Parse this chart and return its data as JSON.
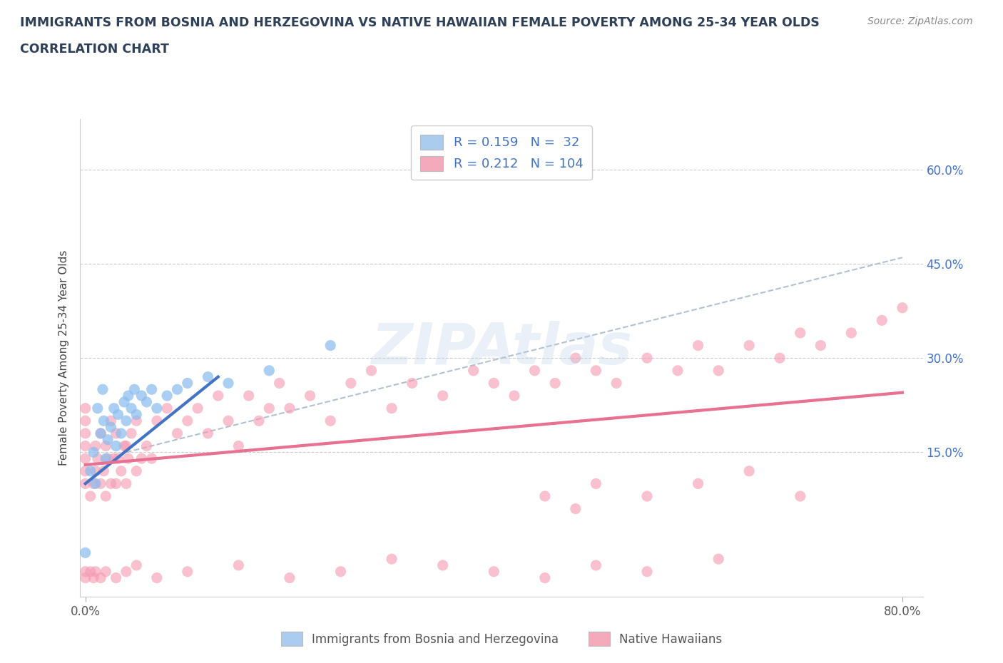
{
  "title_line1": "IMMIGRANTS FROM BOSNIA AND HERZEGOVINA VS NATIVE HAWAIIAN FEMALE POVERTY AMONG 25-34 YEAR OLDS",
  "title_line2": "CORRELATION CHART",
  "source_text": "Source: ZipAtlas.com",
  "ylabel": "Female Poverty Among 25-34 Year Olds",
  "xlim": [
    -0.005,
    0.82
  ],
  "ylim": [
    -0.08,
    0.68
  ],
  "xtick_positions": [
    0.0,
    0.8
  ],
  "xticklabels": [
    "0.0%",
    "80.0%"
  ],
  "ytick_positions": [
    0.0,
    0.15,
    0.3,
    0.45,
    0.6
  ],
  "right_ytick_positions": [
    0.15,
    0.3,
    0.45,
    0.6
  ],
  "right_yticklabels": [
    "15.0%",
    "30.0%",
    "45.0%",
    "60.0%"
  ],
  "bosnia_scatter_color": "#88bbee",
  "hawaii_scatter_color": "#f599b0",
  "bosnia_line_color": "#4472c4",
  "hawaii_line_color": "#e87090",
  "dashed_line_color": "#aabbcc",
  "hline_color": "#cccccc",
  "R_bosnia": 0.159,
  "N_bosnia": 32,
  "R_hawaii": 0.212,
  "N_hawaii": 104,
  "legend_label_1": "Immigrants from Bosnia and Herzegovina",
  "legend_label_2": "Native Hawaiians",
  "watermark": "ZIPAtlas",
  "legend_N_color": "#4472c4",
  "bosnia_legend_color": "#aaccee",
  "hawaii_legend_color": "#f5aabb",
  "bosnia_x": [
    0.0,
    0.005,
    0.008,
    0.01,
    0.012,
    0.015,
    0.017,
    0.018,
    0.02,
    0.022,
    0.025,
    0.028,
    0.03,
    0.032,
    0.035,
    0.038,
    0.04,
    0.042,
    0.045,
    0.048,
    0.05,
    0.055,
    0.06,
    0.065,
    0.07,
    0.08,
    0.09,
    0.1,
    0.12,
    0.14,
    0.18,
    0.24
  ],
  "bosnia_y": [
    -0.01,
    0.12,
    0.15,
    0.1,
    0.22,
    0.18,
    0.25,
    0.2,
    0.14,
    0.17,
    0.19,
    0.22,
    0.16,
    0.21,
    0.18,
    0.23,
    0.2,
    0.24,
    0.22,
    0.25,
    0.21,
    0.24,
    0.23,
    0.25,
    0.22,
    0.24,
    0.25,
    0.26,
    0.27,
    0.26,
    0.28,
    0.32
  ],
  "hawaii_x": [
    0.0,
    0.0,
    0.0,
    0.0,
    0.0,
    0.0,
    0.0,
    0.005,
    0.008,
    0.01,
    0.01,
    0.012,
    0.015,
    0.015,
    0.018,
    0.02,
    0.02,
    0.022,
    0.025,
    0.025,
    0.028,
    0.03,
    0.03,
    0.032,
    0.035,
    0.038,
    0.04,
    0.04,
    0.042,
    0.045,
    0.05,
    0.05,
    0.055,
    0.06,
    0.065,
    0.07,
    0.08,
    0.09,
    0.1,
    0.11,
    0.12,
    0.13,
    0.14,
    0.15,
    0.16,
    0.17,
    0.18,
    0.19,
    0.2,
    0.22,
    0.24,
    0.26,
    0.28,
    0.3,
    0.32,
    0.35,
    0.38,
    0.4,
    0.42,
    0.44,
    0.46,
    0.48,
    0.5,
    0.52,
    0.55,
    0.58,
    0.6,
    0.62,
    0.65,
    0.68,
    0.7,
    0.72,
    0.75,
    0.78,
    0.8,
    0.45,
    0.48,
    0.5,
    0.55,
    0.6,
    0.65,
    0.7,
    0.62,
    0.55,
    0.5,
    0.45,
    0.4,
    0.35,
    0.3,
    0.25,
    0.2,
    0.15,
    0.1,
    0.07,
    0.05,
    0.04,
    0.03,
    0.02,
    0.015,
    0.01,
    0.008,
    0.005,
    0.0,
    0.0
  ],
  "hawaii_y": [
    0.1,
    0.12,
    0.14,
    0.16,
    0.18,
    0.2,
    0.22,
    0.08,
    0.1,
    0.12,
    0.16,
    0.14,
    0.1,
    0.18,
    0.12,
    0.08,
    0.16,
    0.14,
    0.1,
    0.2,
    0.14,
    0.1,
    0.18,
    0.14,
    0.12,
    0.16,
    0.1,
    0.16,
    0.14,
    0.18,
    0.12,
    0.2,
    0.14,
    0.16,
    0.14,
    0.2,
    0.22,
    0.18,
    0.2,
    0.22,
    0.18,
    0.24,
    0.2,
    0.16,
    0.24,
    0.2,
    0.22,
    0.26,
    0.22,
    0.24,
    0.2,
    0.26,
    0.28,
    0.22,
    0.26,
    0.24,
    0.28,
    0.26,
    0.24,
    0.28,
    0.26,
    0.3,
    0.28,
    0.26,
    0.3,
    0.28,
    0.32,
    0.28,
    0.32,
    0.3,
    0.34,
    0.32,
    0.34,
    0.36,
    0.38,
    0.08,
    0.06,
    0.1,
    0.08,
    0.1,
    0.12,
    0.08,
    -0.02,
    -0.04,
    -0.03,
    -0.05,
    -0.04,
    -0.03,
    -0.02,
    -0.04,
    -0.05,
    -0.03,
    -0.04,
    -0.05,
    -0.03,
    -0.04,
    -0.05,
    -0.04,
    -0.05,
    -0.04,
    -0.05,
    -0.04,
    -0.05,
    -0.04
  ]
}
